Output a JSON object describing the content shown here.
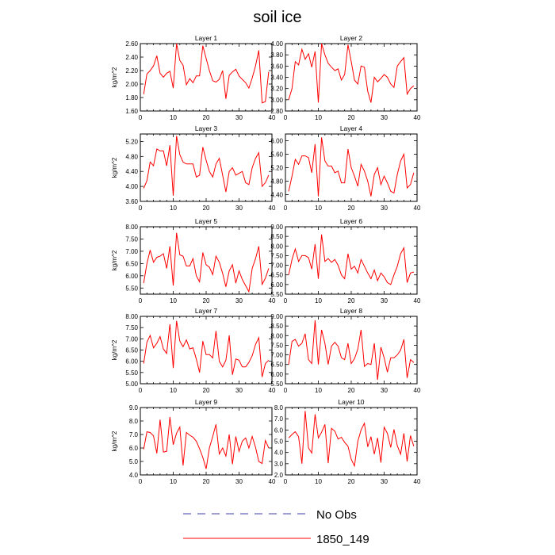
{
  "figure": {
    "title": "soil ice",
    "legend": [
      {
        "label": "No Obs",
        "color": "#3f3fa8",
        "dash": "dashed"
      },
      {
        "label": "1850_149",
        "color": "#ff0000",
        "dash": "solid"
      }
    ]
  },
  "chart_data": [
    {
      "type": "line",
      "title": "Layer 1",
      "ylabel": "kg/m^2",
      "xlim": [
        0,
        40
      ],
      "xticks": [
        0,
        10,
        20,
        30,
        40
      ],
      "ylim": [
        1.6,
        2.6
      ],
      "yticks": [
        "1.60",
        "1.80",
        "2.00",
        "2.20",
        "2.40",
        "2.60"
      ],
      "series": [
        {
          "color": "#ff0000",
          "x": [
            1,
            2,
            3,
            4,
            5,
            6,
            7,
            8,
            9,
            10,
            11,
            12,
            13,
            14,
            15,
            16,
            17,
            18,
            19,
            20,
            21,
            22,
            23,
            24,
            25,
            26,
            27,
            28,
            29,
            30,
            31,
            32,
            33,
            34,
            35,
            36,
            37,
            38,
            39
          ],
          "y": [
            1.85,
            2.15,
            2.2,
            2.27,
            2.42,
            2.16,
            2.1,
            2.16,
            2.19,
            1.94,
            2.6,
            2.35,
            2.28,
            1.99,
            2.08,
            2.02,
            2.12,
            2.12,
            2.57,
            2.38,
            2.2,
            2.05,
            2.03,
            2.07,
            2.2,
            1.78,
            2.13,
            2.18,
            2.22,
            2.12,
            2.07,
            2.02,
            1.94,
            2.09,
            2.27,
            2.5,
            1.72,
            1.74,
            2.18
          ]
        }
      ]
    },
    {
      "type": "line",
      "title": "Layer 2",
      "ylabel": "",
      "xlim": [
        0,
        40
      ],
      "xticks": [
        0,
        10,
        20,
        30,
        40
      ],
      "ylim": [
        2.8,
        4.0
      ],
      "yticks": [
        "2.80",
        "3.00",
        "3.20",
        "3.40",
        "3.60",
        "3.80",
        "4.00"
      ],
      "series": [
        {
          "color": "#ff0000",
          "x": [
            1,
            2,
            3,
            4,
            5,
            6,
            7,
            8,
            9,
            10,
            11,
            12,
            13,
            14,
            15,
            16,
            17,
            18,
            19,
            20,
            21,
            22,
            23,
            24,
            25,
            26,
            27,
            28,
            29,
            30,
            31,
            32,
            33,
            34,
            35,
            36,
            37,
            38,
            39
          ],
          "y": [
            3.0,
            3.2,
            3.68,
            3.62,
            3.9,
            3.72,
            3.82,
            3.58,
            3.86,
            2.95,
            4.0,
            3.8,
            3.65,
            3.58,
            3.52,
            3.55,
            3.35,
            3.45,
            3.98,
            3.68,
            3.35,
            3.28,
            3.6,
            3.58,
            3.15,
            2.95,
            3.4,
            3.32,
            3.38,
            3.45,
            3.4,
            3.28,
            3.22,
            3.6,
            3.68,
            3.75,
            3.1,
            3.2,
            3.25
          ]
        }
      ]
    },
    {
      "type": "line",
      "title": "Layer 3",
      "ylabel": "kg/m^2",
      "xlim": [
        0,
        40
      ],
      "xticks": [
        0,
        10,
        20,
        30,
        40
      ],
      "ylim": [
        3.6,
        5.4
      ],
      "yticks": [
        "3.60",
        "4.00",
        "4.40",
        "4.80",
        "5.20"
      ],
      "series": [
        {
          "color": "#ff0000",
          "x": [
            1,
            2,
            3,
            4,
            5,
            6,
            7,
            8,
            9,
            10,
            11,
            12,
            13,
            14,
            15,
            16,
            17,
            18,
            19,
            20,
            21,
            22,
            23,
            24,
            25,
            26,
            27,
            28,
            29,
            30,
            31,
            32,
            33,
            34,
            35,
            36,
            37,
            38,
            39
          ],
          "y": [
            3.95,
            4.15,
            4.65,
            4.55,
            5.0,
            4.95,
            4.95,
            4.55,
            5.1,
            3.75,
            5.35,
            4.85,
            4.65,
            4.6,
            4.6,
            4.6,
            4.25,
            4.3,
            5.05,
            4.7,
            4.4,
            4.25,
            4.6,
            4.75,
            4.3,
            3.85,
            4.4,
            4.5,
            4.3,
            4.35,
            4.4,
            4.1,
            4.05,
            4.5,
            4.75,
            4.9,
            4.0,
            4.1,
            4.3
          ]
        }
      ]
    },
    {
      "type": "line",
      "title": "Layer 4",
      "ylabel": "",
      "xlim": [
        0,
        40
      ],
      "xticks": [
        0,
        10,
        20,
        30,
        40
      ],
      "ylim": [
        4.2,
        6.2
      ],
      "yticks": [
        "4.40",
        "4.80",
        "5.20",
        "5.60",
        "6.00"
      ],
      "series": [
        {
          "color": "#ff0000",
          "x": [
            1,
            2,
            3,
            4,
            5,
            6,
            7,
            8,
            9,
            10,
            11,
            12,
            13,
            14,
            15,
            16,
            17,
            18,
            19,
            20,
            21,
            22,
            23,
            24,
            25,
            26,
            27,
            28,
            29,
            30,
            31,
            32,
            33,
            34,
            35,
            36,
            37,
            38,
            39
          ],
          "y": [
            4.5,
            4.95,
            5.45,
            5.3,
            5.55,
            5.55,
            5.5,
            5.05,
            5.9,
            4.35,
            6.1,
            5.4,
            5.25,
            5.25,
            5.05,
            5.1,
            4.75,
            4.75,
            5.75,
            5.2,
            4.95,
            4.65,
            5.3,
            5.1,
            4.8,
            4.35,
            5.0,
            5.2,
            4.7,
            4.95,
            4.75,
            4.5,
            4.45,
            5.0,
            5.4,
            5.6,
            4.6,
            4.7,
            5.05
          ]
        }
      ]
    },
    {
      "type": "line",
      "title": "Layer 5",
      "ylabel": "kg/m^2",
      "xlim": [
        0,
        40
      ],
      "xticks": [
        0,
        10,
        20,
        30,
        40
      ],
      "ylim": [
        5.25,
        8.0
      ],
      "yticks": [
        "5.50",
        "6.00",
        "6.50",
        "7.00",
        "7.50",
        "8.00"
      ],
      "series": [
        {
          "color": "#ff0000",
          "x": [
            1,
            2,
            3,
            4,
            5,
            6,
            7,
            8,
            9,
            10,
            11,
            12,
            13,
            14,
            15,
            16,
            17,
            18,
            19,
            20,
            21,
            22,
            23,
            24,
            25,
            26,
            27,
            28,
            29,
            30,
            31,
            32,
            33,
            34,
            35,
            36,
            37,
            38,
            39
          ],
          "y": [
            5.7,
            6.5,
            7.05,
            6.55,
            6.75,
            6.8,
            6.9,
            6.3,
            7.2,
            5.6,
            7.75,
            6.85,
            6.8,
            6.4,
            6.4,
            6.7,
            6.0,
            5.75,
            6.95,
            6.45,
            6.35,
            6.05,
            6.8,
            6.55,
            6.1,
            5.55,
            6.2,
            6.45,
            5.7,
            6.2,
            5.85,
            5.6,
            5.35,
            6.3,
            6.7,
            7.2,
            5.65,
            5.9,
            6.3
          ]
        }
      ]
    },
    {
      "type": "line",
      "title": "Layer 6",
      "ylabel": "",
      "xlim": [
        0,
        40
      ],
      "xticks": [
        0,
        10,
        20,
        30,
        40
      ],
      "ylim": [
        5.5,
        9.0
      ],
      "yticks": [
        "5.50",
        "6.00",
        "6.50",
        "7.00",
        "7.50",
        "8.00",
        "8.50",
        "9.00"
      ],
      "series": [
        {
          "color": "#ff0000",
          "x": [
            1,
            2,
            3,
            4,
            5,
            6,
            7,
            8,
            9,
            10,
            11,
            12,
            13,
            14,
            15,
            16,
            17,
            18,
            19,
            20,
            21,
            22,
            23,
            24,
            25,
            26,
            27,
            28,
            29,
            30,
            31,
            32,
            33,
            34,
            35,
            36,
            37,
            38,
            39
          ],
          "y": [
            6.5,
            7.3,
            7.85,
            7.2,
            7.5,
            7.5,
            7.4,
            6.8,
            8.1,
            6.3,
            8.6,
            7.2,
            7.35,
            7.15,
            7.3,
            7.0,
            6.5,
            6.3,
            7.6,
            6.8,
            6.95,
            6.6,
            7.3,
            6.95,
            6.6,
            6.3,
            6.75,
            6.2,
            6.6,
            6.4,
            6.1,
            6.0,
            6.5,
            6.95,
            7.6,
            7.9,
            6.1,
            6.6,
            6.65
          ]
        }
      ]
    },
    {
      "type": "line",
      "title": "Layer 7",
      "ylabel": "kg/m^2",
      "xlim": [
        0,
        40
      ],
      "xticks": [
        0,
        10,
        20,
        30,
        40
      ],
      "ylim": [
        5.0,
        8.0
      ],
      "yticks": [
        "5.00",
        "5.50",
        "6.00",
        "6.50",
        "7.00",
        "7.50",
        "8.00"
      ],
      "series": [
        {
          "color": "#ff0000",
          "x": [
            1,
            2,
            3,
            4,
            5,
            6,
            7,
            8,
            9,
            10,
            11,
            12,
            13,
            14,
            15,
            16,
            17,
            18,
            19,
            20,
            21,
            22,
            23,
            24,
            25,
            26,
            27,
            28,
            29,
            30,
            31,
            32,
            33,
            34,
            35,
            36,
            37,
            38,
            39
          ],
          "y": [
            5.9,
            6.85,
            7.15,
            6.6,
            6.8,
            7.1,
            6.55,
            6.35,
            7.65,
            5.7,
            7.8,
            6.9,
            6.65,
            6.95,
            6.55,
            6.6,
            6.1,
            5.5,
            6.9,
            6.3,
            6.3,
            6.15,
            7.35,
            6.0,
            5.75,
            6.05,
            7.15,
            5.4,
            6.1,
            6.05,
            5.75,
            5.75,
            5.95,
            6.25,
            6.75,
            7.05,
            5.3,
            5.9,
            6.05
          ]
        }
      ]
    },
    {
      "type": "line",
      "title": "Layer 8",
      "ylabel": "",
      "xlim": [
        0,
        40
      ],
      "xticks": [
        0,
        10,
        20,
        30,
        40
      ],
      "ylim": [
        5.5,
        9.0
      ],
      "yticks": [
        "5.50",
        "6.00",
        "6.50",
        "7.00",
        "7.50",
        "8.00",
        "8.50",
        "9.00"
      ],
      "series": [
        {
          "color": "#ff0000",
          "x": [
            1,
            2,
            3,
            4,
            5,
            6,
            7,
            8,
            9,
            10,
            11,
            12,
            13,
            14,
            15,
            16,
            17,
            18,
            19,
            20,
            21,
            22,
            23,
            24,
            25,
            26,
            27,
            28,
            29,
            30,
            31,
            32,
            33,
            34,
            35,
            36,
            37,
            38,
            39
          ],
          "y": [
            6.5,
            7.7,
            7.8,
            7.45,
            7.6,
            8.1,
            6.75,
            6.55,
            8.8,
            6.5,
            8.3,
            7.6,
            6.5,
            7.45,
            7.65,
            7.45,
            6.85,
            6.75,
            7.6,
            6.55,
            6.8,
            7.3,
            8.3,
            6.4,
            6.55,
            6.5,
            7.6,
            5.7,
            7.4,
            6.85,
            6.1,
            6.85,
            6.85,
            7.0,
            7.25,
            7.8,
            5.8,
            6.75,
            6.6
          ]
        }
      ]
    },
    {
      "type": "line",
      "title": "Layer 9",
      "ylabel": "kg/m^2",
      "xlim": [
        0,
        40
      ],
      "xticks": [
        0,
        10,
        20,
        30,
        40
      ],
      "ylim": [
        4.0,
        9.0
      ],
      "yticks": [
        "4.0",
        "5.0",
        "6.0",
        "7.0",
        "8.0",
        "9.0"
      ],
      "series": [
        {
          "color": "#ff0000",
          "x": [
            1,
            2,
            3,
            4,
            5,
            6,
            7,
            8,
            9,
            10,
            11,
            12,
            13,
            14,
            15,
            16,
            17,
            18,
            19,
            20,
            21,
            22,
            23,
            24,
            25,
            26,
            27,
            28,
            29,
            30,
            31,
            32,
            33,
            34,
            35,
            36,
            37,
            38,
            39
          ],
          "y": [
            5.9,
            7.2,
            7.15,
            6.9,
            5.6,
            8.1,
            5.7,
            5.75,
            8.3,
            6.25,
            7.1,
            7.55,
            4.7,
            7.15,
            6.95,
            6.8,
            6.5,
            5.95,
            5.3,
            4.45,
            6.0,
            6.85,
            7.75,
            5.55,
            6.0,
            5.4,
            7.0,
            4.8,
            6.85,
            5.75,
            6.5,
            6.75,
            6.0,
            6.85,
            6.05,
            5.0,
            4.85,
            6.55,
            6.0
          ]
        }
      ]
    },
    {
      "type": "line",
      "title": "Layer 10",
      "ylabel": "",
      "xlim": [
        0,
        40
      ],
      "xticks": [
        0,
        10,
        20,
        30,
        40
      ],
      "ylim": [
        2.0,
        8.0
      ],
      "yticks": [
        "2.0",
        "3.0",
        "4.0",
        "5.0",
        "6.0",
        "7.0",
        "8.0"
      ],
      "series": [
        {
          "color": "#ff0000",
          "x": [
            1,
            2,
            3,
            4,
            5,
            6,
            7,
            8,
            9,
            10,
            11,
            12,
            13,
            14,
            15,
            16,
            17,
            18,
            19,
            20,
            21,
            22,
            23,
            24,
            25,
            26,
            27,
            28,
            29,
            30,
            31,
            32,
            33,
            34,
            35,
            36,
            37,
            38,
            39
          ],
          "y": [
            5.3,
            5.6,
            5.85,
            5.4,
            3.0,
            7.7,
            4.4,
            3.95,
            7.4,
            5.3,
            5.8,
            6.5,
            3.05,
            6.15,
            5.9,
            5.2,
            5.35,
            4.9,
            4.55,
            3.4,
            2.8,
            5.0,
            6.0,
            6.6,
            4.5,
            5.4,
            3.85,
            5.3,
            3.1,
            6.25,
            5.7,
            4.45,
            6.05,
            4.6,
            3.85,
            5.7,
            3.2,
            5.5,
            4.55
          ]
        }
      ]
    }
  ]
}
